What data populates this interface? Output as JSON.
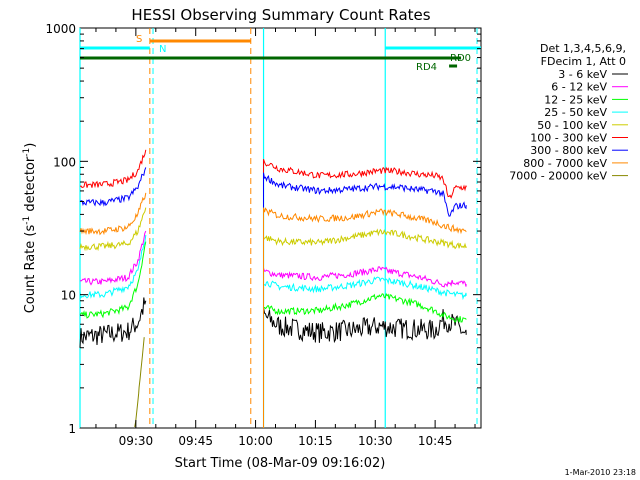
{
  "chart_data": {
    "type": "line",
    "title": "HESSI Observing Summary Count Rates",
    "xlabel": "Start Time (08-Mar-09 09:16:02)",
    "ylabel_main": "Count Rate (s",
    "ylabel_sup1": "-1",
    "ylabel_mid": " detector",
    "ylabel_sup2": "-1",
    "ylabel_end": ")",
    "yscale": "log",
    "ylim": [
      1,
      1000
    ],
    "xlim_minutes": [
      0,
      100.5
    ],
    "x_ticks": [
      {
        "m": 14,
        "label": "09:30"
      },
      {
        "m": 29,
        "label": "09:45"
      },
      {
        "m": 44,
        "label": "10:00"
      },
      {
        "m": 59,
        "label": "10:15"
      },
      {
        "m": 74,
        "label": "10:30"
      },
      {
        "m": 89,
        "label": "10:45"
      }
    ],
    "y_ticks": [
      {
        "v": 1,
        "label": "1"
      },
      {
        "v": 10,
        "label": "10"
      },
      {
        "v": 100,
        "label": "100"
      },
      {
        "v": 1000,
        "label": "1000"
      }
    ],
    "legend_title": [
      "Det 1,3,4,5,6,9,",
      "FDecim 1, Att 0"
    ],
    "series": [
      {
        "name": "3 - 6 keV",
        "color": "#000000",
        "seg1": {
          "x": [
            0,
            6,
            12,
            14.5,
            16.5
          ],
          "y": [
            4.8,
            5,
            5.3,
            6.2,
            9
          ]
        },
        "seg2": {
          "x": [
            46,
            50,
            60,
            68,
            75,
            80,
            85,
            89,
            91,
            94,
            96.8
          ],
          "y": [
            7,
            5.8,
            5.2,
            5.4,
            5.8,
            5.6,
            5.5,
            5.4,
            6.5,
            6,
            5
          ]
        }
      },
      {
        "name": "6 - 12 keV",
        "color": "#ff00ff",
        "seg1": {
          "x": [
            0,
            6,
            12,
            14.5,
            16.5
          ],
          "y": [
            12.5,
            12.5,
            13.5,
            18,
            30
          ]
        },
        "seg2": {
          "x": [
            46,
            50,
            60,
            68,
            75,
            80,
            85,
            89,
            91,
            94,
            96.8
          ],
          "y": [
            15,
            14,
            13.5,
            14.3,
            15.5,
            14.5,
            13.5,
            12.5,
            12,
            12.5,
            12
          ]
        }
      },
      {
        "name": "12 - 25 keV",
        "color": "#00ff00",
        "seg1": {
          "x": [
            0,
            6,
            12,
            14.5,
            16.5
          ],
          "y": [
            7,
            7.2,
            8,
            12,
            25
          ]
        },
        "seg2": {
          "x": [
            46,
            50,
            60,
            68,
            75,
            80,
            85,
            89,
            91,
            94,
            96.8
          ],
          "y": [
            8,
            7.5,
            7.6,
            8.5,
            9.8,
            9.2,
            8.4,
            7.6,
            7,
            6.6,
            6.5
          ]
        }
      },
      {
        "name": "25 - 50 keV",
        "color": "#00ffff",
        "seg1": {
          "x": [
            0,
            6,
            12,
            14.5,
            16.5
          ],
          "y": [
            10,
            10,
            11.5,
            15,
            28
          ]
        },
        "seg2": {
          "x": [
            46,
            50,
            60,
            68,
            75,
            80,
            85,
            89,
            91,
            94,
            96.8
          ],
          "y": [
            12.5,
            11.5,
            11,
            11.8,
            13,
            12.4,
            11.5,
            10.8,
            10.4,
            10,
            9.8
          ]
        }
      },
      {
        "name": "50 - 100 keV",
        "color": "#cccc00",
        "seg1": {
          "x": [
            0,
            6,
            12,
            14.5,
            16.5
          ],
          "y": [
            23,
            23,
            24,
            30,
            45
          ]
        },
        "seg2": {
          "x": [
            46,
            50,
            60,
            68,
            75,
            80,
            85,
            89,
            91,
            94,
            96.8
          ],
          "y": [
            27,
            25,
            24.5,
            27,
            29.5,
            28.5,
            26.5,
            25,
            24.5,
            23.5,
            23
          ]
        }
      },
      {
        "name": "100 - 300 keV",
        "color": "#ff0000",
        "seg1": {
          "x": [
            0,
            6,
            12,
            14.5,
            16.5
          ],
          "y": [
            66,
            67,
            72,
            85,
            122
          ]
        },
        "seg2": {
          "x": [
            46,
            50,
            60,
            68,
            75,
            80,
            85,
            89,
            91,
            92.5,
            94,
            96.8
          ],
          "y": [
            100,
            88,
            78,
            80,
            85,
            84,
            80,
            78,
            74,
            52,
            63,
            64
          ]
        }
      },
      {
        "name": "300 - 800 keV",
        "color": "#0000ff",
        "seg1": {
          "x": [
            0,
            6,
            12,
            14.5,
            16.5
          ],
          "y": [
            49,
            49,
            53,
            64,
            90
          ]
        },
        "seg2": {
          "x": [
            46,
            50,
            60,
            68,
            75,
            80,
            85,
            89,
            91,
            92.5,
            94,
            96.8
          ],
          "y": [
            78,
            66,
            60,
            62,
            65,
            64,
            61,
            60,
            57,
            38,
            46,
            47
          ]
        }
      },
      {
        "name": "800 - 7000 keV",
        "color": "#ff8800",
        "seg1": {
          "x": [
            0,
            6,
            12,
            14.5,
            16.5
          ],
          "y": [
            30,
            30,
            32,
            40,
            58
          ]
        },
        "seg2": {
          "x": [
            46,
            50,
            60,
            68,
            75,
            80,
            85,
            89,
            91,
            94,
            96.8
          ],
          "y": [
            43,
            39,
            37,
            38,
            42,
            40,
            37,
            35,
            33,
            31,
            30
          ]
        }
      },
      {
        "name": "7000 - 20000 keV",
        "color": "#888800",
        "seg1": {
          "x": [
            13.7,
            14.2,
            14.8,
            15.4,
            16.1
          ],
          "y": [
            1,
            1.3,
            2,
            3,
            4.8
          ]
        },
        "seg2": null
      }
    ],
    "markers": {
      "cyan_vlines_m": [
        0,
        46,
        76.5
      ],
      "orange_dashed_vlines_m": [
        17.5,
        42.8
      ],
      "cyan_dashed_vlines_m": [
        18.3,
        99.5
      ],
      "labels": [
        {
          "text": "S",
          "color": "#ff8800"
        },
        {
          "text": "N",
          "color": "#00ffff"
        },
        {
          "text": "RD0",
          "color": "#006600"
        },
        {
          "text": "RD4",
          "color": "#006600"
        }
      ]
    }
  },
  "footer": {
    "date_stamp": "1-Mar-2010 23:18"
  }
}
